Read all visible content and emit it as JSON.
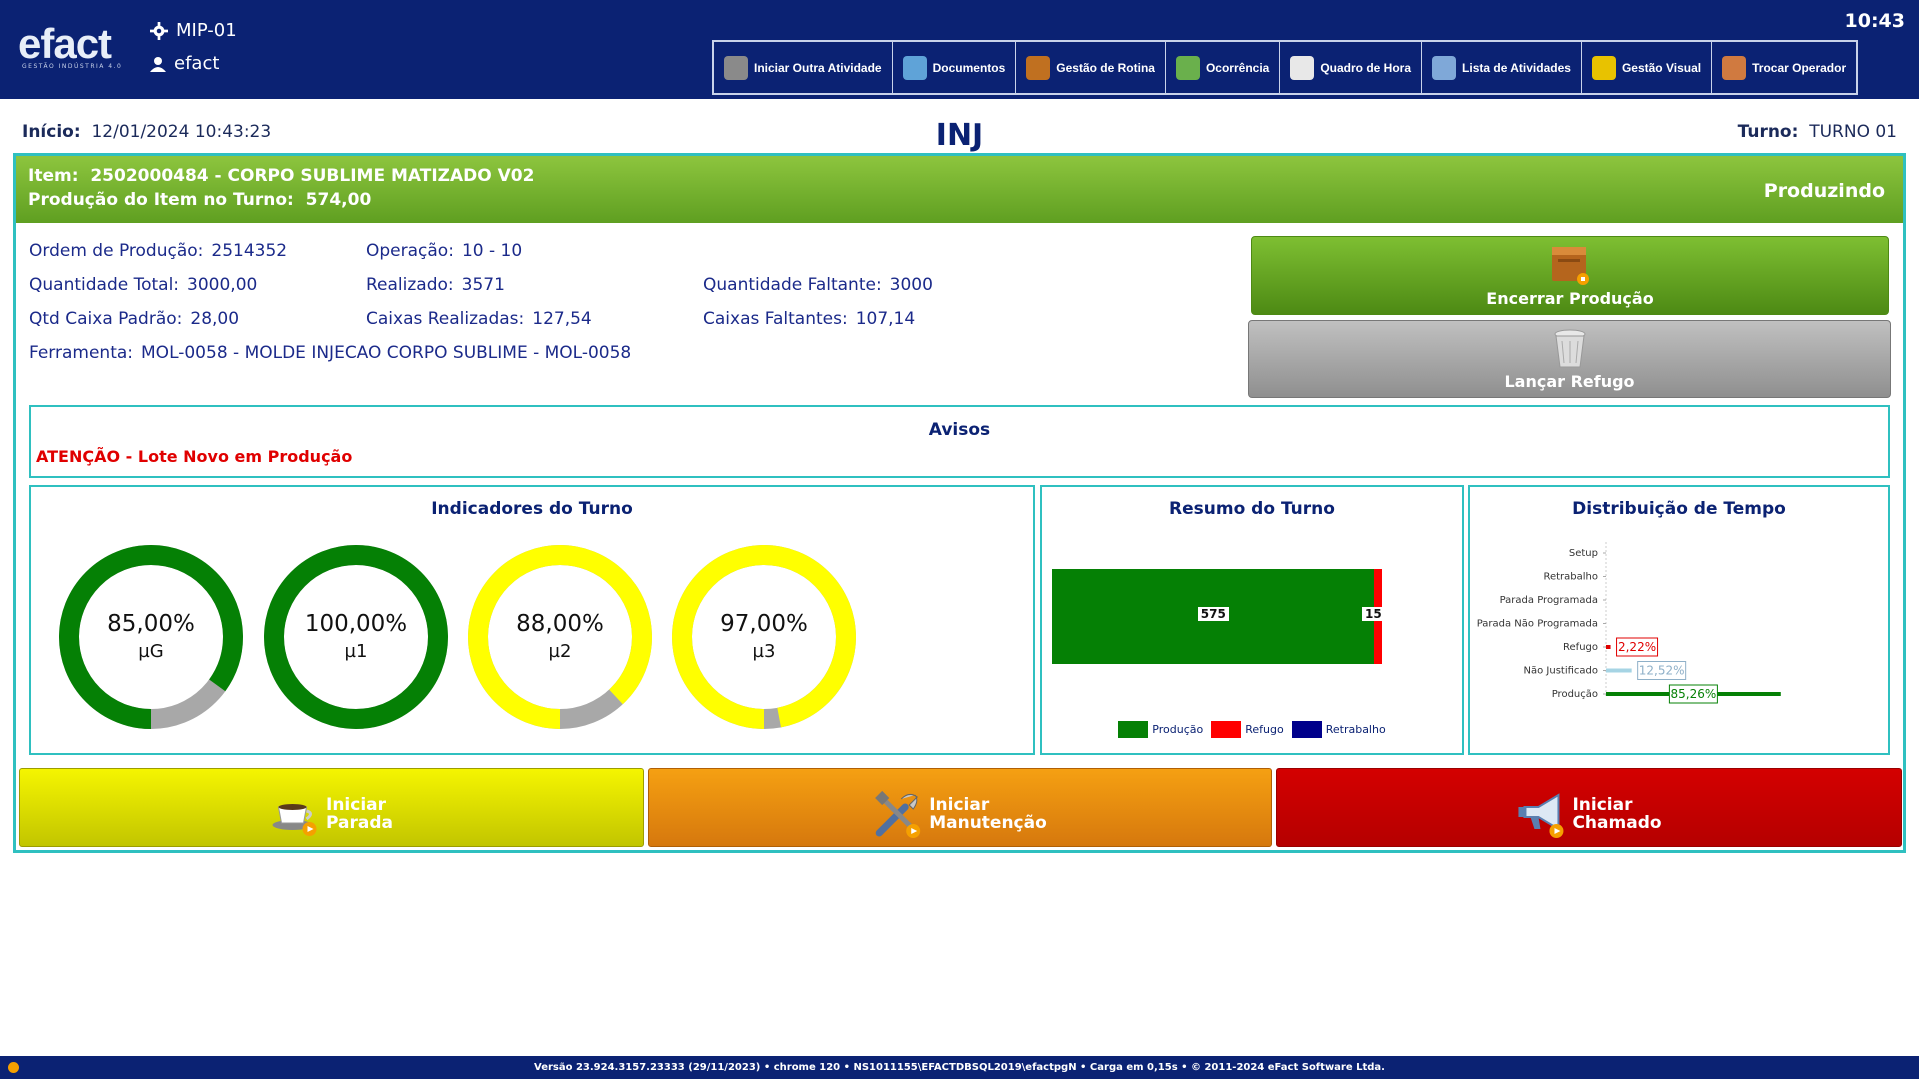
{
  "topbar": {
    "logo": "efact",
    "logo_sub": "GESTÃO INDÚSTRIA 4.0",
    "machine": "MIP-01",
    "operator": "efact",
    "clock": "10:43",
    "toolbar": [
      {
        "label": "Iniciar Outra Atividade",
        "icon": "plus-icon",
        "color": "#8a8a8a"
      },
      {
        "label": "Documentos",
        "icon": "monitor-icon",
        "color": "#5fa3d8"
      },
      {
        "label": "Gestão de Rotina",
        "icon": "people-icon",
        "color": "#c07020"
      },
      {
        "label": "Ocorrência",
        "icon": "map-icon",
        "color": "#6ab04c"
      },
      {
        "label": "Quadro de Hora",
        "icon": "papers-icon",
        "color": "#e8e8e8"
      },
      {
        "label": "Lista de Atividades",
        "icon": "clipboard-icon",
        "color": "#7fa8d8"
      },
      {
        "label": "Gestão Visual",
        "icon": "bar-chart-icon",
        "color": "#e8c200"
      },
      {
        "label": "Trocar Operador",
        "icon": "users-icon",
        "color": "#d07a40"
      }
    ]
  },
  "header": {
    "inicio_label": "Início:",
    "inicio_value": "12/01/2024 10:43:23",
    "cell": "INJ",
    "turno_label": "Turno:",
    "turno_value": "TURNO 01"
  },
  "item": {
    "label": "Item:",
    "value": "2502000484 - CORPO SUBLIME MATIZADO V02",
    "prod_label": "Produção do Item no Turno:",
    "prod_value": "574,00",
    "status": "Produzindo"
  },
  "info": {
    "ordem_label": "Ordem de Produção:",
    "ordem_value": "2514352",
    "operacao_label": "Operação:",
    "operacao_value": "10 - 10",
    "qtd_total_label": "Quantidade Total:",
    "qtd_total_value": "3000,00",
    "realizado_label": "Realizado:",
    "realizado_value": "3571",
    "qtd_faltante_label": "Quantidade Faltante:",
    "qtd_faltante_value": "3000",
    "caixa_padrao_label": "Qtd Caixa Padrão:",
    "caixa_padrao_value": "28,00",
    "caixas_real_label": "Caixas Realizadas:",
    "caixas_real_value": "127,54",
    "caixas_falt_label": "Caixas Faltantes:",
    "caixas_falt_value": "107,14",
    "ferramenta_label": "Ferramenta:",
    "ferramenta_value": "MOL-0058 - MOLDE INJECAO CORPO SUBLIME - MOL-0058"
  },
  "actions": {
    "encerrar": "Encerrar Produção",
    "refugo": "Lançar Refugo",
    "parada_1": "Iniciar",
    "parada_2": "Parada",
    "manut_1": "Iniciar",
    "manut_2": "Manutenção",
    "chamado_1": "Iniciar",
    "chamado_2": "Chamado"
  },
  "avisos": {
    "title": "Avisos",
    "message": "ATENÇÃO - Lote Novo em Produção"
  },
  "indicadores": {
    "title": "Indicadores do Turno",
    "gauges": [
      {
        "value": "85,00%",
        "label": "µG",
        "fraction": 0.85,
        "color": "#058005"
      },
      {
        "value": "100,00%",
        "label": "µ1",
        "fraction": 1.0,
        "color": "#058005"
      },
      {
        "value": "88,00%",
        "label": "µ2",
        "fraction": 0.88,
        "color": "#ffff00"
      },
      {
        "value": "97,00%",
        "label": "µ3",
        "fraction": 0.97,
        "color": "#ffff00"
      }
    ],
    "remainder_color": "#a8a8a8"
  },
  "resumo": {
    "title": "Resumo do Turno",
    "chart_data": {
      "type": "bar",
      "series": [
        {
          "name": "Produção",
          "value": 575,
          "color": "#058005"
        },
        {
          "name": "Refugo",
          "value": 15,
          "color": "#ff0000"
        },
        {
          "name": "Retrabalho",
          "value": 0,
          "color": "#00008b"
        }
      ]
    }
  },
  "distribuicao": {
    "title": "Distribuição de Tempo",
    "chart_data": {
      "type": "bar",
      "categories": [
        "Setup",
        "Retrabalho",
        "Parada Programada",
        "Parada Não Programada",
        "Refugo",
        "Não Justificado",
        "Produção"
      ],
      "values": [
        0,
        0,
        0,
        0,
        2.22,
        12.52,
        85.26
      ],
      "labels": [
        "",
        "",
        "",
        "",
        "2,22%",
        "12,52%",
        "85,26%"
      ],
      "colors": [
        "#058005",
        "#058005",
        "#058005",
        "#058005",
        "#e00000",
        "#a6d4e4",
        "#058005"
      ],
      "label_colors": [
        "#111",
        "#111",
        "#111",
        "#111",
        "#e00000",
        "#8fb0c8",
        "#058005"
      ]
    }
  },
  "footer": {
    "text": "Versão 23.924.3157.23333  (29/11/2023)  •  chrome 120 • NS1011155\\EFACTDBSQL2019\\efactpgN • Carga em 0,15s • © 2011-2024 eFact Software Ltda."
  }
}
